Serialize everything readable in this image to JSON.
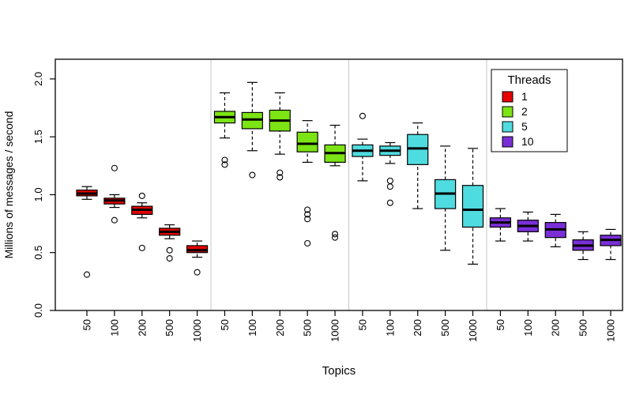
{
  "chart_data": {
    "type": "boxplot",
    "title": "",
    "xlabel": "Topics",
    "ylabel": "Millions of messages / second",
    "ylim": [
      0,
      2.17
    ],
    "yticks": [
      0.0,
      0.5,
      1.0,
      1.5,
      2.0
    ],
    "categories": [
      "50",
      "100",
      "200",
      "500",
      "1000"
    ],
    "grid": false,
    "legend": {
      "title": "Threads",
      "position": "top-right",
      "entries": [
        {
          "label": "1",
          "color": "#e60000"
        },
        {
          "label": "2",
          "color": "#7ce414"
        },
        {
          "label": "5",
          "color": "#4fdce0"
        },
        {
          "label": "10",
          "color": "#7a2fd6"
        }
      ]
    },
    "groups": [
      {
        "thread": "1",
        "color": "#e60000",
        "boxes": [
          {
            "topic": "50",
            "low": 0.96,
            "q1": 0.99,
            "med": 1.01,
            "q3": 1.04,
            "high": 1.07,
            "outliers": [
              0.31
            ]
          },
          {
            "topic": "100",
            "low": 0.89,
            "q1": 0.92,
            "med": 0.95,
            "q3": 0.97,
            "high": 1.0,
            "outliers": [
              1.23,
              0.78
            ]
          },
          {
            "topic": "200",
            "low": 0.8,
            "q1": 0.83,
            "med": 0.87,
            "q3": 0.9,
            "high": 0.93,
            "outliers": [
              0.99,
              0.54
            ]
          },
          {
            "topic": "500",
            "low": 0.62,
            "q1": 0.65,
            "med": 0.68,
            "q3": 0.71,
            "high": 0.74,
            "outliers": [
              0.52,
              0.45
            ]
          },
          {
            "topic": "1000",
            "low": 0.46,
            "q1": 0.5,
            "med": 0.52,
            "q3": 0.56,
            "high": 0.6,
            "outliers": [
              0.33
            ]
          }
        ]
      },
      {
        "thread": "2",
        "color": "#7ce414",
        "boxes": [
          {
            "topic": "50",
            "low": 1.49,
            "q1": 1.62,
            "med": 1.67,
            "q3": 1.72,
            "high": 1.88,
            "outliers": [
              1.3,
              1.26
            ]
          },
          {
            "topic": "100",
            "low": 1.38,
            "q1": 1.57,
            "med": 1.65,
            "q3": 1.71,
            "high": 1.97,
            "outliers": [
              1.17
            ]
          },
          {
            "topic": "200",
            "low": 1.35,
            "q1": 1.55,
            "med": 1.64,
            "q3": 1.73,
            "high": 1.88,
            "outliers": [
              1.19,
              1.15
            ]
          },
          {
            "topic": "500",
            "low": 1.28,
            "q1": 1.37,
            "med": 1.44,
            "q3": 1.54,
            "high": 1.64,
            "outliers": [
              0.87,
              0.83,
              0.79,
              0.58
            ]
          },
          {
            "topic": "1000",
            "low": 1.25,
            "q1": 1.28,
            "med": 1.36,
            "q3": 1.43,
            "high": 1.6,
            "outliers": [
              0.66,
              0.63
            ]
          }
        ]
      },
      {
        "thread": "5",
        "color": "#4fdce0",
        "boxes": [
          {
            "topic": "50",
            "low": 1.12,
            "q1": 1.33,
            "med": 1.38,
            "q3": 1.43,
            "high": 1.48,
            "outliers": [
              1.68
            ]
          },
          {
            "topic": "100",
            "low": 1.27,
            "q1": 1.34,
            "med": 1.38,
            "q3": 1.42,
            "high": 1.45,
            "outliers": [
              1.12,
              1.07,
              0.93
            ]
          },
          {
            "topic": "200",
            "low": 0.88,
            "q1": 1.26,
            "med": 1.4,
            "q3": 1.52,
            "high": 1.62,
            "outliers": []
          },
          {
            "topic": "500",
            "low": 0.52,
            "q1": 0.88,
            "med": 1.01,
            "q3": 1.13,
            "high": 1.42,
            "outliers": []
          },
          {
            "topic": "1000",
            "low": 0.4,
            "q1": 0.72,
            "med": 0.87,
            "q3": 1.08,
            "high": 1.4,
            "outliers": []
          }
        ]
      },
      {
        "thread": "10",
        "color": "#7a2fd6",
        "boxes": [
          {
            "topic": "50",
            "low": 0.6,
            "q1": 0.72,
            "med": 0.76,
            "q3": 0.8,
            "high": 0.88,
            "outliers": []
          },
          {
            "topic": "100",
            "low": 0.6,
            "q1": 0.68,
            "med": 0.73,
            "q3": 0.78,
            "high": 0.85,
            "outliers": []
          },
          {
            "topic": "200",
            "low": 0.55,
            "q1": 0.63,
            "med": 0.7,
            "q3": 0.76,
            "high": 0.83,
            "outliers": []
          },
          {
            "topic": "500",
            "low": 0.44,
            "q1": 0.52,
            "med": 0.56,
            "q3": 0.61,
            "high": 0.68,
            "outliers": []
          },
          {
            "topic": "1000",
            "low": 0.44,
            "q1": 0.56,
            "med": 0.61,
            "q3": 0.65,
            "high": 0.7,
            "outliers": []
          }
        ]
      }
    ]
  }
}
